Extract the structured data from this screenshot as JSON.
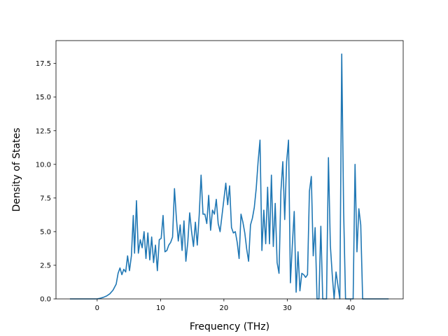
{
  "chart_data": {
    "type": "line",
    "title": "",
    "xlabel": "Frequency (THz)",
    "ylabel": "Density of States",
    "xlim": [
      -6.5,
      48.3
    ],
    "ylim": [
      0,
      19.2
    ],
    "xticks": [
      0,
      10,
      20,
      30,
      40
    ],
    "xtick_labels": [
      "0",
      "10",
      "20",
      "30",
      "40"
    ],
    "yticks": [
      0,
      2.5,
      5,
      7.5,
      10,
      12.5,
      15,
      17.5
    ],
    "ytick_labels": [
      "0.0",
      "2.5",
      "5.0",
      "7.5",
      "10.0",
      "12.5",
      "15.0",
      "17.5"
    ],
    "grid": false,
    "legend": "none",
    "line_color": "#1f77b4",
    "series": [
      {
        "x": [
          -4.3,
          0.0,
          0.5,
          1.0,
          1.5,
          2.0,
          2.5,
          3.0,
          3.3,
          3.6,
          3.9,
          4.2,
          4.5,
          4.8,
          5.1,
          5.4,
          5.7,
          5.9,
          6.2,
          6.5,
          6.8,
          7.1,
          7.4,
          7.7,
          8.0,
          8.3,
          8.6,
          8.9,
          9.2,
          9.5,
          9.8,
          10.1,
          10.4,
          10.7,
          11.0,
          11.3,
          11.6,
          11.9,
          12.2,
          12.5,
          12.8,
          13.1,
          13.4,
          13.7,
          14.0,
          14.3,
          14.6,
          14.9,
          15.2,
          15.5,
          15.8,
          16.1,
          16.4,
          16.7,
          17.0,
          17.3,
          17.6,
          17.9,
          18.2,
          18.5,
          18.8,
          19.1,
          19.4,
          19.7,
          20.0,
          20.3,
          20.6,
          20.9,
          21.2,
          21.5,
          21.8,
          22.1,
          22.4,
          22.7,
          23.0,
          23.3,
          23.6,
          23.9,
          24.2,
          24.5,
          24.8,
          25.1,
          25.4,
          25.7,
          26.0,
          26.3,
          26.6,
          26.9,
          27.2,
          27.5,
          27.8,
          28.1,
          28.4,
          28.7,
          29.0,
          29.3,
          29.6,
          29.9,
          30.2,
          30.5,
          30.8,
          31.1,
          31.4,
          31.7,
          32.0,
          32.3,
          32.6,
          32.9,
          33.2,
          33.5,
          33.8,
          34.1,
          34.4,
          34.7,
          35.0,
          35.3,
          35.6,
          35.9,
          36.2,
          36.5,
          36.8,
          37.1,
          37.4,
          37.7,
          38.0,
          38.3,
          38.6,
          38.9,
          39.2,
          39.5,
          39.8,
          40.1,
          40.4,
          40.7,
          41.0,
          41.3,
          41.6,
          41.9,
          42.2,
          46.0
        ],
        "y": [
          0,
          0,
          0.05,
          0.12,
          0.22,
          0.38,
          0.65,
          1.1,
          1.9,
          2.3,
          1.8,
          2.2,
          2.0,
          3.2,
          2.1,
          3.2,
          6.2,
          3.4,
          7.3,
          3.4,
          4.4,
          3.8,
          5.0,
          3.0,
          4.9,
          2.9,
          4.6,
          2.7,
          4.0,
          2.1,
          4.4,
          4.5,
          6.2,
          3.5,
          3.6,
          4.0,
          4.2,
          4.6,
          8.2,
          6.0,
          4.3,
          5.5,
          3.6,
          5.8,
          2.8,
          4.2,
          6.4,
          5.0,
          3.9,
          5.7,
          4.0,
          6.2,
          9.2,
          6.3,
          6.3,
          5.6,
          7.7,
          5.1,
          6.6,
          6.3,
          7.4,
          5.6,
          5.0,
          6.2,
          7.4,
          8.6,
          7.0,
          8.4,
          5.3,
          4.9,
          5.0,
          4.2,
          3.0,
          6.3,
          5.7,
          4.9,
          3.7,
          2.8,
          5.5,
          6.0,
          6.8,
          8.2,
          10.2,
          11.8,
          3.6,
          6.6,
          4.1,
          8.3,
          4.1,
          9.2,
          3.9,
          7.1,
          2.7,
          1.9,
          8.0,
          10.2,
          5.9,
          10.2,
          11.8,
          1.2,
          4.0,
          6.5,
          0.5,
          3.5,
          0.6,
          1.9,
          1.8,
          1.6,
          1.8,
          8.0,
          9.1,
          3.2,
          5.3,
          0.0,
          0.0,
          5.4,
          0.0,
          0.0,
          0.0,
          10.5,
          4.0,
          1.8,
          0.0,
          2.0,
          1.0,
          0.0,
          18.2,
          6.5,
          0.0,
          0.0,
          0.0,
          0.0,
          0.0,
          10.0,
          3.5,
          6.7,
          5.5,
          0.0,
          0.0,
          0.0
        ]
      }
    ]
  }
}
